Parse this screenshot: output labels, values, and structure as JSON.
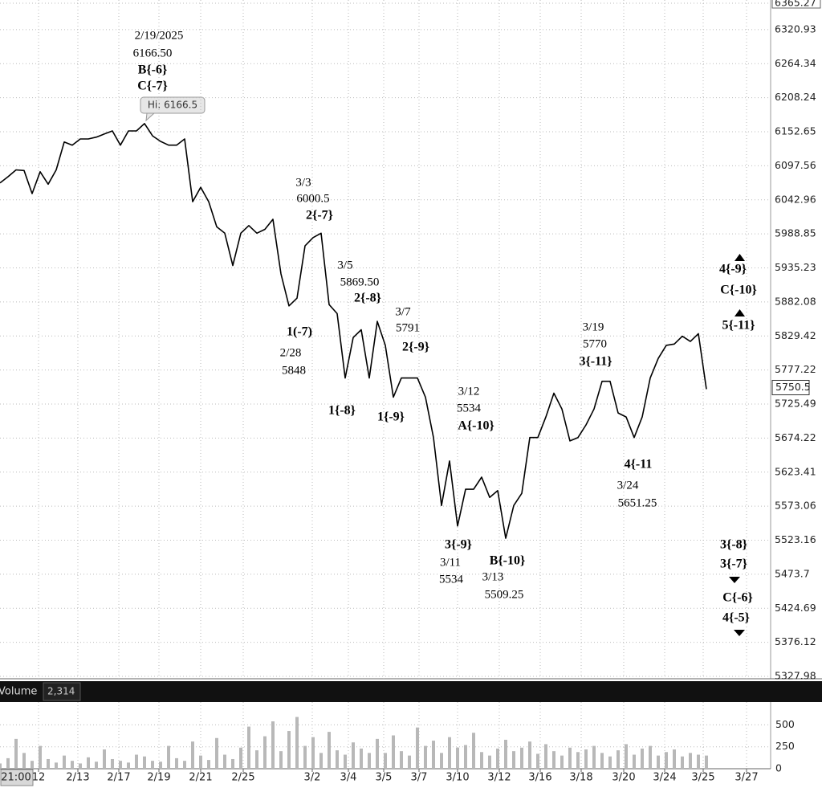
{
  "chart_data": [
    {
      "type": "line",
      "color": "#000000",
      "yscale": "log",
      "ylim": [
        5327.98,
        6365.27
      ],
      "yticks": [
        5327.98,
        5376.12,
        5424.69,
        5473.7,
        5523.16,
        5573.06,
        5623.41,
        5674.22,
        5725.49,
        5777.22,
        5829.42,
        5882.08,
        5935.23,
        5988.85,
        6042.96,
        6097.56,
        6152.65,
        6208.24,
        6264.34,
        6320.93,
        6365.27
      ],
      "xticks": [
        "21:00",
        "12",
        "2/13",
        "2/17",
        "2/19",
        "2/21",
        "2/25",
        "3/2",
        "3/4",
        "3/5",
        "3/7",
        "3/10",
        "3/12",
        "3/16",
        "3/18",
        "3/20",
        "3/24",
        "3/25",
        "3/27"
      ],
      "grid": true,
      "values": [
        6070,
        6080,
        6091,
        6090,
        6053,
        6088,
        6068,
        6091,
        6136,
        6131,
        6141,
        6141,
        6144,
        6149,
        6154,
        6131,
        6154,
        6154,
        6166,
        6146,
        6137,
        6131,
        6131,
        6141,
        6040,
        6063,
        6040,
        6000,
        5990,
        5939,
        5990,
        6002,
        5990,
        5996,
        6012,
        5926,
        5876,
        5888,
        5970,
        5983,
        5990,
        5878,
        5864,
        5765,
        5827,
        5839,
        5765,
        5852,
        5815,
        5736,
        5765,
        5765,
        5765,
        5736,
        5675,
        5574,
        5640,
        5544,
        5598,
        5598,
        5616,
        5586,
        5596,
        5526,
        5574,
        5592,
        5675,
        5675,
        5706,
        5742,
        5718,
        5670,
        5675,
        5694,
        5718,
        5760,
        5760,
        5712,
        5706,
        5675,
        5706,
        5765,
        5795,
        5815,
        5817,
        5829,
        5821,
        5833,
        5748
      ],
      "last_value": 5750.5,
      "high_label": "Hi: 6166.5",
      "annotations": [
        "2/19/2025",
        "6166.50",
        "B{-6}",
        "C{-7}",
        "3/3",
        "6000.5",
        "2{-7}",
        "3/5",
        "5869.50",
        "2{-8}",
        "3/7",
        "5791",
        "2{-9}",
        "1(-7)",
        "2/28",
        "5848",
        "1{-8}",
        "1{-9}",
        "3/12",
        "5534",
        "A{-10}",
        "3{-9}",
        "3/11",
        "5534",
        "B{-10}",
        "3/13",
        "5509.25",
        "3/19",
        "5770",
        "3{-11}",
        "4{-11",
        "3/24",
        "5651.25",
        "4{-9}",
        "C{-10}",
        "5{-11}",
        "3{-8}",
        "3{-7}",
        "C{-6}",
        "4{-5}"
      ]
    },
    {
      "type": "bar",
      "title": "Volume",
      "color": "#b8b8b8",
      "current": {
        "value": 2314,
        "label": "2,314"
      },
      "ylim": [
        0,
        760
      ],
      "yticks": [
        0,
        250,
        500
      ],
      "values": [
        60,
        120,
        340,
        180,
        90,
        260,
        110,
        70,
        150,
        90,
        60,
        130,
        80,
        220,
        110,
        90,
        70,
        160,
        140,
        90,
        80,
        260,
        120,
        90,
        310,
        150,
        100,
        350,
        160,
        110,
        240,
        480,
        210,
        370,
        540,
        200,
        430,
        590,
        260,
        360,
        180,
        420,
        210,
        160,
        300,
        230,
        180,
        340,
        180,
        380,
        200,
        150,
        470,
        260,
        320,
        180,
        360,
        240,
        270,
        410,
        190,
        150,
        230,
        330,
        200,
        240,
        310,
        170,
        280,
        200,
        150,
        240,
        190,
        220,
        260,
        180,
        140,
        210,
        280,
        160,
        230,
        260,
        150,
        190,
        220,
        140,
        180,
        160,
        150
      ]
    }
  ]
}
